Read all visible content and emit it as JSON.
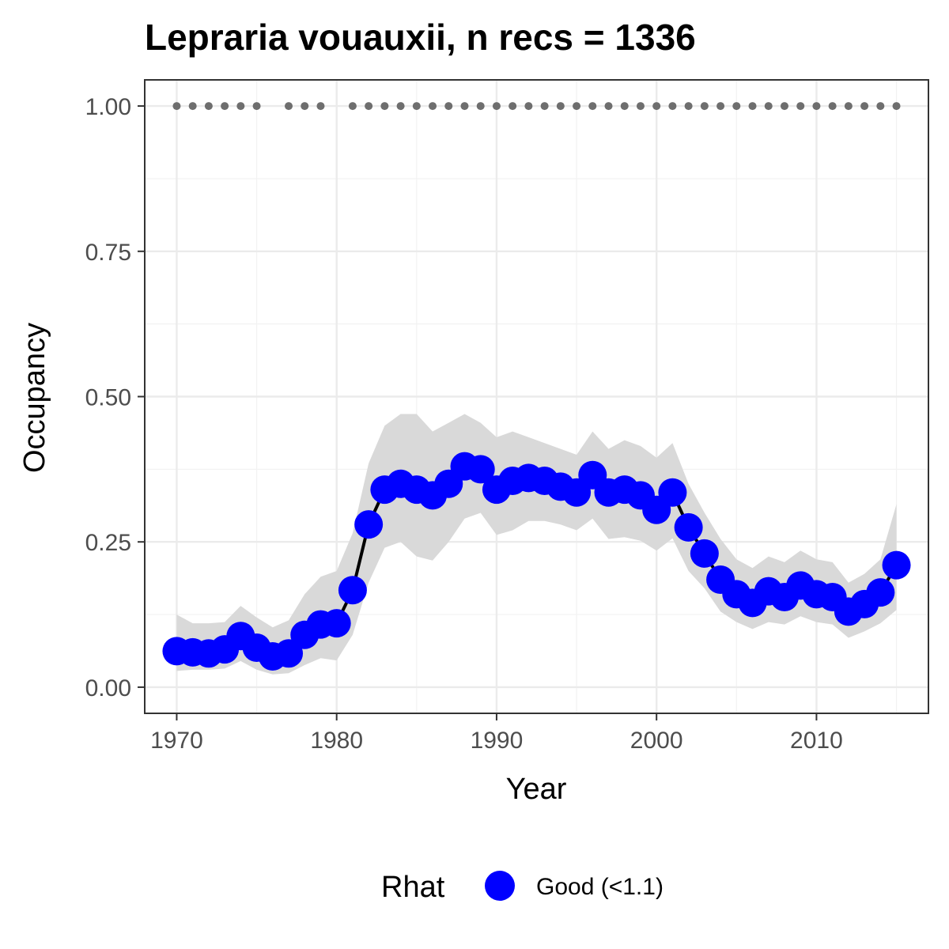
{
  "chart_data": {
    "type": "line",
    "title": "Lepraria vouauxii, n recs = 1336",
    "xlabel": "Year",
    "ylabel": "Occupancy",
    "xlim": [
      1968,
      2017
    ],
    "ylim": [
      -0.045,
      1.045
    ],
    "x_ticks": [
      1970,
      1980,
      1990,
      2000,
      2010
    ],
    "x_tick_labels": [
      "1970",
      "1980",
      "1990",
      "2000",
      "2010"
    ],
    "y_ticks": [
      0,
      0.25,
      0.5,
      0.75,
      1.0
    ],
    "y_tick_labels": [
      "0.00",
      "0.25",
      "0.50",
      "0.75",
      "1.00"
    ],
    "grid": true,
    "legend": {
      "title": "Rhat",
      "position": "bottom",
      "entries": [
        {
          "label": "Good (<1.1)",
          "color": "#0000ff"
        }
      ]
    },
    "colors": {
      "points": "#0000ff",
      "line": "#000000",
      "ribbon": "#d9d9d9",
      "record_dots": "#6e6e6e"
    },
    "series": [
      {
        "x": [
          1970,
          1971,
          1972,
          1973,
          1974,
          1975,
          1976,
          1977,
          1978,
          1979,
          1980,
          1981,
          1982,
          1983,
          1984,
          1985,
          1986,
          1987,
          1988,
          1989,
          1990,
          1991,
          1992,
          1993,
          1994,
          1995,
          1996,
          1997,
          1998,
          1999,
          2000,
          2001,
          2002,
          2003,
          2004,
          2005,
          2006,
          2007,
          2008,
          2009,
          2010,
          2011,
          2012,
          2013,
          2014,
          2015
        ],
        "values": [
          0.062,
          0.06,
          0.058,
          0.065,
          0.088,
          0.068,
          0.053,
          0.058,
          0.09,
          0.108,
          0.11,
          0.167,
          0.28,
          0.34,
          0.35,
          0.34,
          0.33,
          0.35,
          0.38,
          0.375,
          0.34,
          0.355,
          0.36,
          0.355,
          0.345,
          0.335,
          0.365,
          0.335,
          0.34,
          0.33,
          0.305,
          0.335,
          0.275,
          0.23,
          0.185,
          0.16,
          0.145,
          0.165,
          0.155,
          0.175,
          0.16,
          0.155,
          0.13,
          0.143,
          0.163,
          0.21
        ],
        "lower": [
          0.028,
          0.03,
          0.03,
          0.032,
          0.045,
          0.03,
          0.022,
          0.024,
          0.038,
          0.05,
          0.046,
          0.09,
          0.18,
          0.24,
          0.25,
          0.225,
          0.218,
          0.25,
          0.29,
          0.3,
          0.262,
          0.27,
          0.286,
          0.286,
          0.28,
          0.27,
          0.29,
          0.255,
          0.258,
          0.252,
          0.235,
          0.256,
          0.2,
          0.17,
          0.13,
          0.112,
          0.1,
          0.112,
          0.108,
          0.122,
          0.112,
          0.108,
          0.085,
          0.096,
          0.11,
          0.133
        ],
        "upper": [
          0.125,
          0.11,
          0.11,
          0.112,
          0.14,
          0.12,
          0.103,
          0.115,
          0.16,
          0.19,
          0.2,
          0.265,
          0.385,
          0.45,
          0.47,
          0.47,
          0.44,
          0.455,
          0.47,
          0.455,
          0.43,
          0.44,
          0.43,
          0.42,
          0.41,
          0.4,
          0.44,
          0.41,
          0.425,
          0.415,
          0.395,
          0.42,
          0.35,
          0.3,
          0.255,
          0.22,
          0.205,
          0.225,
          0.215,
          0.235,
          0.22,
          0.215,
          0.18,
          0.195,
          0.22,
          0.315
        ]
      }
    ],
    "record_years": [
      1970,
      1971,
      1972,
      1973,
      1974,
      1975,
      1977,
      1978,
      1979,
      1981,
      1982,
      1983,
      1984,
      1985,
      1986,
      1987,
      1988,
      1989,
      1990,
      1991,
      1992,
      1993,
      1994,
      1995,
      1996,
      1997,
      1998,
      1999,
      2000,
      2001,
      2002,
      2003,
      2004,
      2005,
      2006,
      2007,
      2008,
      2009,
      2010,
      2011,
      2012,
      2013,
      2014,
      2015
    ],
    "record_value": 1.0
  }
}
